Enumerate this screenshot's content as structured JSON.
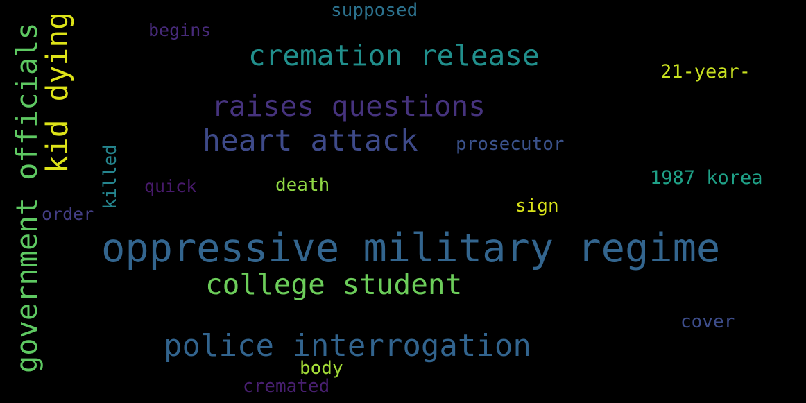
{
  "background": "#000000",
  "words": {
    "oppressive_military_regime": {
      "text": "oppressive military regime",
      "color": "#33658e"
    },
    "police_interrogation": {
      "text": "police interrogation",
      "color": "#32648e"
    },
    "college_student": {
      "text": "college student",
      "color": "#6ccd5a"
    },
    "cremation_release": {
      "text": "cremation release",
      "color": "#218f8c"
    },
    "raises_questions": {
      "text": "raises questions",
      "color": "#46337e"
    },
    "heart_attack": {
      "text": "heart attack",
      "color": "#3e4a89"
    },
    "government_officials": {
      "text": "government officials",
      "color": "#5ec962"
    },
    "kid_dying": {
      "text": "kid dying",
      "color": "#dde318"
    },
    "prosecutor": {
      "text": "prosecutor",
      "color": "#3b528b"
    },
    "korea_1987": {
      "text": "1987 korea",
      "color": "#1fa187"
    },
    "twenty_one_year": {
      "text": "21-year-",
      "color": "#c8e020"
    },
    "supposed": {
      "text": "supposed",
      "color": "#2c728e"
    },
    "begins": {
      "text": "begins",
      "color": "#472a7a"
    },
    "death": {
      "text": "death",
      "color": "#8fd744"
    },
    "quick": {
      "text": "quick",
      "color": "#481a6c"
    },
    "sign": {
      "text": "sign",
      "color": "#d8e219"
    },
    "order": {
      "text": "order",
      "color": "#433e85"
    },
    "killed": {
      "text": "killed",
      "color": "#25858e"
    },
    "cover": {
      "text": "cover",
      "color": "#3d4d8a"
    },
    "body": {
      "text": "body",
      "color": "#a2da37"
    },
    "cremated": {
      "text": "cremated",
      "color": "#481f70"
    }
  }
}
